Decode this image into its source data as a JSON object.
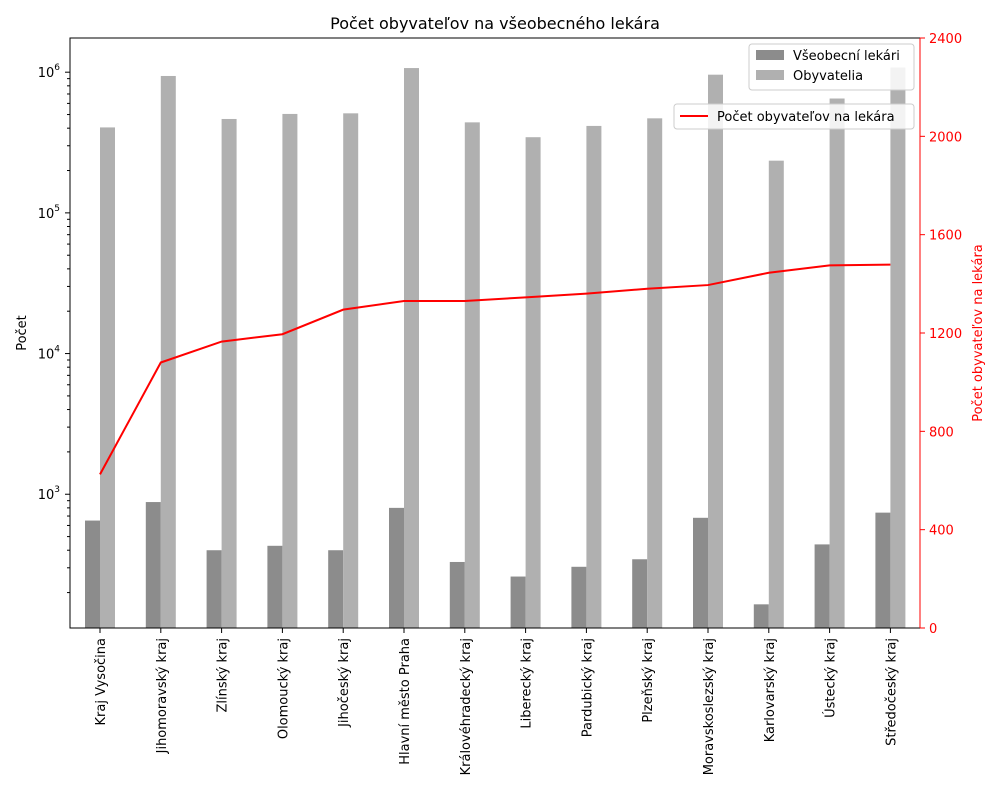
{
  "chart_data": {
    "type": "bar+line",
    "title": "Počet obyvateľov na všeobecného lekára",
    "ylabel_left": "Počet",
    "ylabel_right": "Počet obyvateľov na lekára",
    "left_scale": "log",
    "left_ticks": [
      {
        "base": "10",
        "exp": "3",
        "value": 1000
      },
      {
        "base": "10",
        "exp": "4",
        "value": 10000
      },
      {
        "base": "10",
        "exp": "5",
        "value": 100000
      },
      {
        "base": "10",
        "exp": "6",
        "value": 1000000
      }
    ],
    "right_ylim": [
      0,
      2400
    ],
    "right_ticks": [
      0,
      400,
      800,
      1200,
      1600,
      2000,
      2400
    ],
    "categories": [
      "Kraj Vysočina",
      "Jihomoravský kraj",
      "Zlínský kraj",
      "Olomoucký kraj",
      "Jihočeský kraj",
      "Hlavní město Praha",
      "Královéhradecký kraj",
      "Liberecký kraj",
      "Pardubický kraj",
      "Plzeňský kraj",
      "Moravskoslezský kraj",
      "Karlovarský kraj",
      "Ústecký kraj",
      "Středočeský kraj"
    ],
    "series": [
      {
        "name": "Všeobecní lekári",
        "kind": "bar",
        "axis": "left",
        "color": "#8c8c8c",
        "values": [
          650,
          880,
          400,
          430,
          400,
          800,
          330,
          260,
          305,
          345,
          680,
          165,
          440,
          740
        ]
      },
      {
        "name": "Obyvatelia",
        "kind": "bar",
        "axis": "left",
        "color": "#b0b0b0",
        "values": [
          405000,
          940000,
          465000,
          505000,
          510000,
          1070000,
          440000,
          345000,
          415000,
          470000,
          960000,
          235000,
          650000,
          1080000
        ]
      },
      {
        "name": "Počet obyvateľov na lekára",
        "kind": "line",
        "axis": "right",
        "color": "#ff0000",
        "values": [
          625,
          1080,
          1165,
          1195,
          1295,
          1330,
          1330,
          1345,
          1360,
          1380,
          1395,
          1445,
          1475,
          1478
        ]
      }
    ]
  }
}
